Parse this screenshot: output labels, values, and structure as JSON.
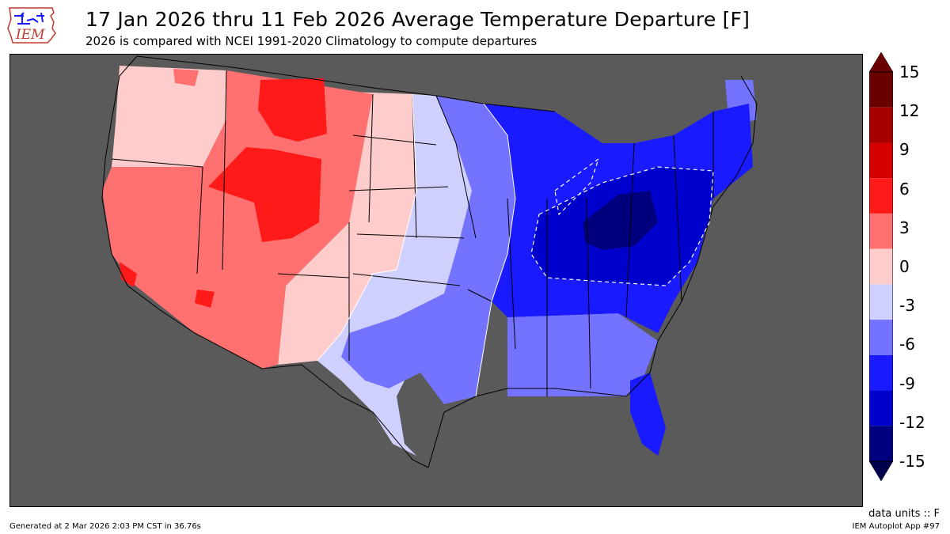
{
  "logo": {
    "text": "IEM"
  },
  "title": "17 Jan 2026 thru 11 Feb 2026 Average Temperature Departure [F]",
  "subtitle": "2026 is compared with NCEI 1991-2020 Climatology to compute departures",
  "colorbar": {
    "labels": [
      "15",
      "12",
      "9",
      "6",
      "3",
      "0",
      "-3",
      "-6",
      "-9",
      "-12",
      "-15"
    ],
    "colors": [
      "#6b0000",
      "#a80000",
      "#d40000",
      "#ff1a1a",
      "#ff7070",
      "#ffcccc",
      "#d0d0ff",
      "#7373ff",
      "#1a1aff",
      "#0000cc",
      "#00007f"
    ],
    "extend_high": "#6b0000",
    "extend_low": "#00004d"
  },
  "map": {
    "background": "#5a5a5a",
    "region": "Contiguous United States"
  },
  "units": "data units :: F",
  "footer": {
    "generated": "Generated at 2 Mar 2026 2:03 PM CST in 36.76s",
    "app": "IEM Autoplot App #97"
  }
}
